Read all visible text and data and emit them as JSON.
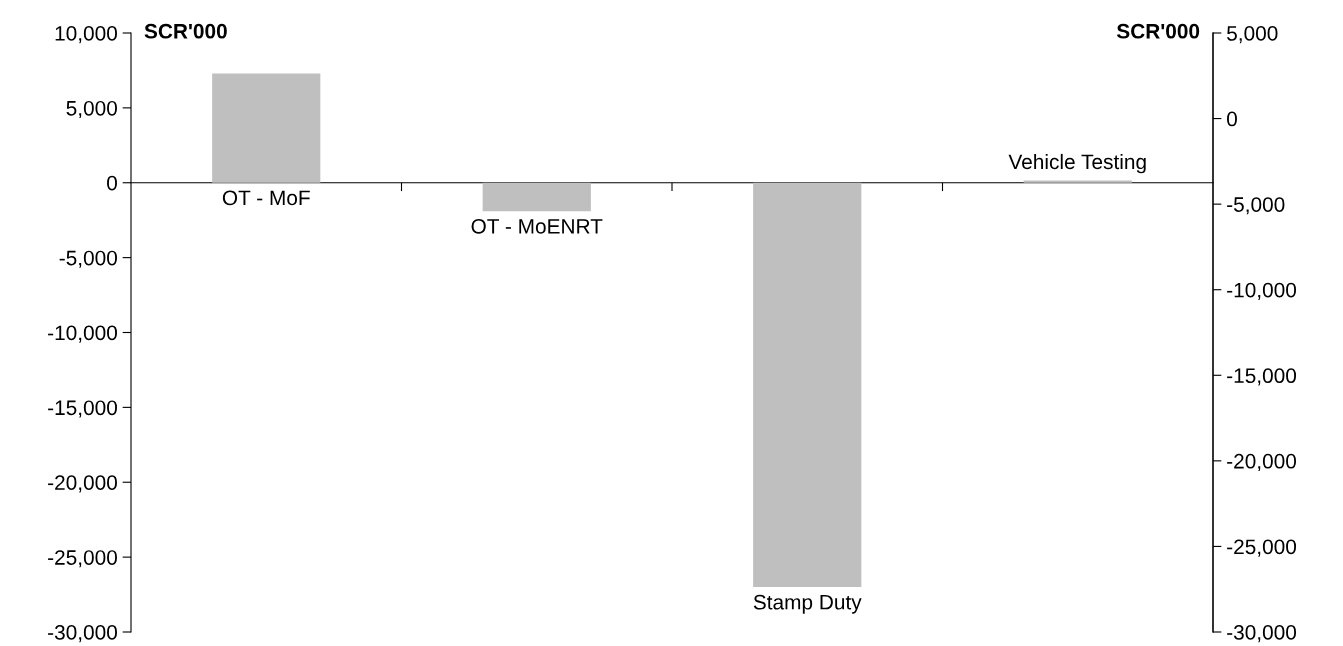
{
  "chart_data": {
    "type": "bar",
    "ylabel": "SCR'000",
    "y2label": "SCR'000",
    "categories": [
      "OT - MoF",
      "OT - MoENRT",
      "Stamp Duty",
      "Vehicle Testing"
    ],
    "series": [
      {
        "color": "#bfbfbf",
        "values": [
          7300,
          -1900,
          -27000,
          150
        ]
      }
    ],
    "ylim": [
      -30000,
      10000
    ],
    "yticks": [
      {
        "value": 10000,
        "label": "10,000"
      },
      {
        "value": 5000,
        "label": "5,000"
      },
      0,
      {
        "value": -5000,
        "label": "-5,000"
      },
      {
        "value": -10000,
        "label": "-10,000"
      },
      {
        "value": -15000,
        "label": "-15,000"
      },
      {
        "value": -20000,
        "label": "-20,000"
      },
      {
        "value": -25000,
        "label": "-25,000"
      },
      {
        "value": -30000,
        "label": "-30,000"
      }
    ],
    "y2lim": [
      -30000,
      5000
    ],
    "y2ticks": [
      {
        "value": 5000,
        "label": "5,000"
      },
      0,
      {
        "value": -5000,
        "label": "-5,000"
      },
      {
        "value": -10000,
        "label": "-10,000"
      },
      {
        "value": -15000,
        "label": "-15,000"
      },
      {
        "value": -20000,
        "label": "-20,000"
      },
      {
        "value": -25000,
        "label": "-25,000"
      },
      {
        "value": -30000,
        "label": "-30,000"
      }
    ],
    "legend": false
  }
}
